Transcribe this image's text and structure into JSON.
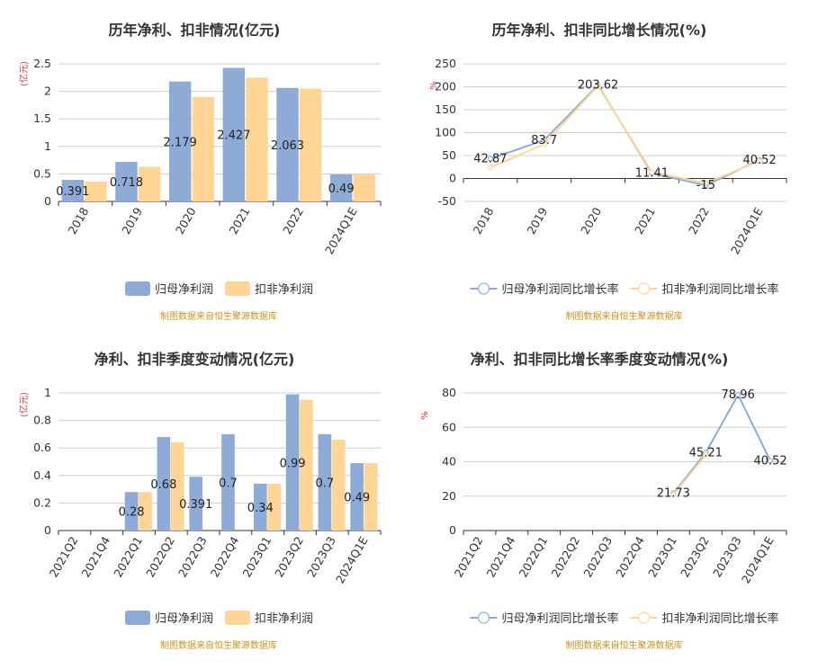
{
  "colors": {
    "series1": "#8eabd8",
    "series2": "#ffd595",
    "source_text": "#c8941e",
    "unit_text": "#e03030"
  },
  "source_note": "制图数据来自恒生聚源数据库",
  "chart_data": [
    {
      "type": "bar",
      "title": "历年净利、扣非情况(亿元)",
      "ylabel": "(亿元)",
      "categories": [
        "2018",
        "2019",
        "2020",
        "2021",
        "2022",
        "2024Q1E"
      ],
      "series": [
        {
          "name": "归母净利润",
          "values": [
            0.391,
            0.718,
            2.179,
            2.427,
            2.063,
            0.49
          ],
          "labels": [
            "0.391",
            "0.718",
            "2.179",
            "2.427",
            "2.063",
            "0.49"
          ]
        },
        {
          "name": "扣非净利润",
          "values": [
            0.36,
            0.63,
            1.9,
            2.25,
            2.05,
            0.49
          ]
        }
      ],
      "ylim": [
        0,
        2.5
      ],
      "yticks": [
        "0",
        "0.5",
        "1",
        "1.5",
        "2",
        "2.5"
      ],
      "ytick_values": [
        0,
        0.5,
        1,
        1.5,
        2,
        2.5
      ],
      "grid": true,
      "legend": "bottom"
    },
    {
      "type": "line",
      "title": "历年净利、扣非同比增长情况(%)",
      "ylabel": "%",
      "categories": [
        "2018",
        "2019",
        "2020",
        "2021",
        "2022",
        "2024Q1E"
      ],
      "series": [
        {
          "name": "归母净利润同比增长率",
          "values": [
            42.87,
            83.7,
            203.62,
            11.41,
            -15,
            40.52
          ],
          "labels": [
            "42.87",
            "83.7",
            "203.62",
            "11.41",
            "-15",
            "40.52"
          ]
        },
        {
          "name": "扣非净利润同比增长率",
          "values": [
            24,
            75,
            202,
            14,
            -10,
            38
          ]
        }
      ],
      "ylim": [
        -50,
        250
      ],
      "yticks": [
        "-50",
        "0",
        "50",
        "100",
        "150",
        "200",
        "250"
      ],
      "ytick_values": [
        -50,
        0,
        50,
        100,
        150,
        200,
        250
      ],
      "grid": true,
      "legend": "bottom"
    },
    {
      "type": "bar",
      "title": "净利、扣非季度变动情况(亿元)",
      "ylabel": "(亿元)",
      "categories": [
        "2021Q2",
        "2021Q4",
        "2022Q1",
        "2022Q2",
        "2022Q3",
        "2022Q4",
        "2023Q1",
        "2023Q2",
        "2023Q3",
        "2024Q1E"
      ],
      "series": [
        {
          "name": "归母净利润",
          "values": [
            null,
            null,
            0.28,
            0.68,
            0.391,
            0.7,
            0.34,
            0.99,
            0.7,
            0.49
          ],
          "labels": [
            "",
            "",
            "0.28",
            "0.68",
            "0.391",
            "0.7",
            "0.34",
            "0.99",
            "0.7",
            "0.49"
          ]
        },
        {
          "name": "扣非净利润",
          "values": [
            null,
            null,
            0.28,
            0.64,
            null,
            null,
            0.34,
            0.95,
            0.66,
            0.49
          ]
        }
      ],
      "ylim": [
        0,
        1
      ],
      "yticks": [
        "0",
        "0.2",
        "0.4",
        "0.6",
        "0.8",
        "1"
      ],
      "ytick_values": [
        0,
        0.2,
        0.4,
        0.6,
        0.8,
        1
      ],
      "grid": true,
      "legend": "bottom"
    },
    {
      "type": "line",
      "title": "净利、扣非同比增长率季度变动情况(%)",
      "ylabel": "%",
      "categories": [
        "2021Q2",
        "2021Q4",
        "2022Q1",
        "2022Q2",
        "2022Q3",
        "2022Q4",
        "2023Q1",
        "2023Q2",
        "2023Q3",
        "2024Q1E"
      ],
      "series": [
        {
          "name": "归母净利润同比增长率",
          "values": [
            null,
            null,
            null,
            null,
            null,
            null,
            21.73,
            45.21,
            78.96,
            40.52
          ],
          "labels": [
            "",
            "",
            "",
            "",
            "",
            "",
            "21.73",
            "45.21",
            "78.96",
            "40.52"
          ]
        },
        {
          "name": "扣非净利润同比增长率",
          "values": [
            null,
            null,
            null,
            null,
            null,
            null,
            21,
            44,
            null,
            null
          ]
        }
      ],
      "ylim": [
        0,
        80
      ],
      "yticks": [
        "0",
        "20",
        "40",
        "60",
        "80"
      ],
      "ytick_values": [
        0,
        20,
        40,
        60,
        80
      ],
      "grid": true,
      "legend": "bottom"
    }
  ]
}
